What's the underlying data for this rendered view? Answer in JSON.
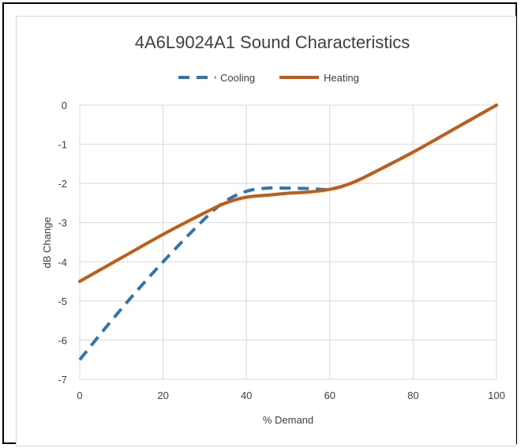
{
  "chart_data": {
    "type": "line",
    "title": "4A6L9024A1 Sound Characteristics",
    "xlabel": "% Demand",
    "ylabel": "dB Change",
    "xlim": [
      0,
      100
    ],
    "ylim": [
      -7,
      0
    ],
    "xticks": [
      "0",
      "20",
      "40",
      "60",
      "80",
      "100"
    ],
    "yticks": [
      "0",
      "-1",
      "-2",
      "-3",
      "-4",
      "-5",
      "-6",
      "-7"
    ],
    "grid": true,
    "legend_position": "top",
    "series": [
      {
        "name": "Cooling",
        "color": "#2e75b6",
        "style": "dashed",
        "x": [
          0,
          10,
          20,
          30,
          35,
          40,
          45,
          50,
          55,
          60,
          65,
          70,
          80,
          90,
          100
        ],
        "y": [
          -6.5,
          -5.2,
          -4.0,
          -2.9,
          -2.45,
          -2.2,
          -2.12,
          -2.12,
          -2.13,
          -2.15,
          -2.0,
          -1.75,
          -1.2,
          -0.6,
          0.0
        ]
      },
      {
        "name": "Heating",
        "color": "#c55a11",
        "style": "solid",
        "x": [
          0,
          10,
          20,
          30,
          35,
          40,
          45,
          50,
          55,
          60,
          65,
          70,
          80,
          90,
          100
        ],
        "y": [
          -4.5,
          -3.9,
          -3.3,
          -2.75,
          -2.5,
          -2.35,
          -2.3,
          -2.25,
          -2.22,
          -2.15,
          -2.0,
          -1.75,
          -1.2,
          -0.6,
          0.0
        ]
      }
    ]
  }
}
